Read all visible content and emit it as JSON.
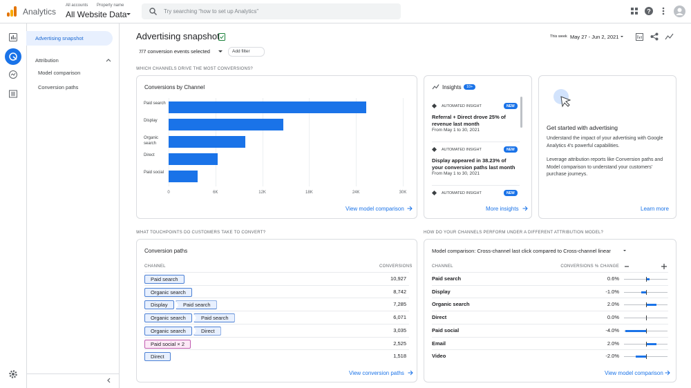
{
  "header": {
    "app_name": "Analytics",
    "breadcrumb": [
      "All accounts",
      "Property name"
    ],
    "property": "All Website Data",
    "search_placeholder": "Try searching “how to set up Analytics”"
  },
  "sidebar": {
    "items": [
      "Advertising snapshot"
    ],
    "group": "Attribution",
    "group_items": [
      "Model comparison",
      "Conversion paths"
    ]
  },
  "page": {
    "title": "Advertising snapshot",
    "filter": "7/7 conversion events selected",
    "add_filter": "Add filter",
    "date_label": "This week",
    "date_range": "May 27 - Jun 2, 2021"
  },
  "sections": [
    "WHICH CHANNELS DRIVE THE MOST CONVERSIONS?",
    "WHAT TOUCHPOINTS DO CUSTOMERS TAKE TO CONVERT?",
    "HOW DO YOUR CHANNELS PERFORM UNDER A DIFFERENT ATTRIBUTION MODEL?"
  ],
  "chart_data": {
    "type": "bar",
    "orientation": "horizontal",
    "title": "Conversions by Channel",
    "categories": [
      "Paid search",
      "Display",
      "Organic search",
      "Direct",
      "Paid social"
    ],
    "values": [
      25300,
      14700,
      9800,
      6300,
      3700
    ],
    "color": "#1a73e8",
    "xlim": [
      0,
      30000
    ],
    "xticks": [
      0,
      {
        "value": 6000,
        "label": "6K"
      },
      {
        "value": 12000,
        "label": "12K"
      },
      {
        "value": 18000,
        "label": "18K"
      },
      {
        "value": 24000,
        "label": "24K"
      },
      {
        "value": 30000,
        "label": "30K"
      }
    ],
    "grid": true,
    "link": "View model comparison"
  },
  "insights": {
    "title": "Insights",
    "badge": "10+",
    "items": [
      {
        "label": "AUTOMATED INSIGHT",
        "badge": "NEW",
        "text": "Referral + Direct drove 25% of revenue last month",
        "date": "From May 1 to 30, 2021"
      },
      {
        "label": "AUTOMATED INSIGHT",
        "badge": "NEW",
        "text": "Display appeared in 38.23% of your conversion paths last month",
        "date": "From May 1 to 30, 2021"
      },
      {
        "label": "AUTOMATED INSIGHT",
        "badge": "NEW"
      }
    ],
    "link": "More insights"
  },
  "get_started": {
    "title": "Get started with advertising",
    "paragraphs": [
      "Understand the impact of your advertising with Google Analytics 4's powerful capabilities.",
      "Leverage attribution reports like Conversion paths and Model comparison to understand your customers' purchase journeys."
    ],
    "link": "Learn more"
  },
  "conversion_paths": {
    "title": "Conversion paths",
    "columns": [
      "CHANNEL",
      "CONVERSIONS"
    ],
    "rows": [
      {
        "path": [
          "Paid search"
        ],
        "conversions": "10,927"
      },
      {
        "path": [
          "Organic search"
        ],
        "conversions": "8,742"
      },
      {
        "path": [
          "Display",
          "Paid search"
        ],
        "conversions": "7,285"
      },
      {
        "path": [
          "Organic search",
          "Paid search"
        ],
        "conversions": "6,071"
      },
      {
        "path": [
          "Organic search",
          "Direct"
        ],
        "conversions": "3,035"
      },
      {
        "path": [
          "Paid social × 2"
        ],
        "conversions": "2,525"
      },
      {
        "path": [
          "Direct"
        ],
        "conversions": "1,518"
      }
    ],
    "link": "View conversion paths"
  },
  "model_comparison": {
    "title": "Model comparison: Cross-channel last click compared to Cross-channel linear",
    "columns": [
      "CHANNEL",
      "CONVERSIONS % CHANGE"
    ],
    "rows": [
      {
        "channel": "Paid search",
        "change": 0.6,
        "change_label": "0.6%"
      },
      {
        "channel": "Display",
        "change": -1.0,
        "change_label": "-1.0%"
      },
      {
        "channel": "Organic search",
        "change": 2.0,
        "change_label": "2.0%"
      },
      {
        "channel": "Direct",
        "change": 0.0,
        "change_label": "0.0%"
      },
      {
        "channel": "Paid social",
        "change": -4.0,
        "change_label": "-4.0%"
      },
      {
        "channel": "Email",
        "change": 2.0,
        "change_label": "2.0%"
      },
      {
        "channel": "Video",
        "change": -2.0,
        "change_label": "-2.0%"
      }
    ],
    "link": "View model comparison"
  }
}
